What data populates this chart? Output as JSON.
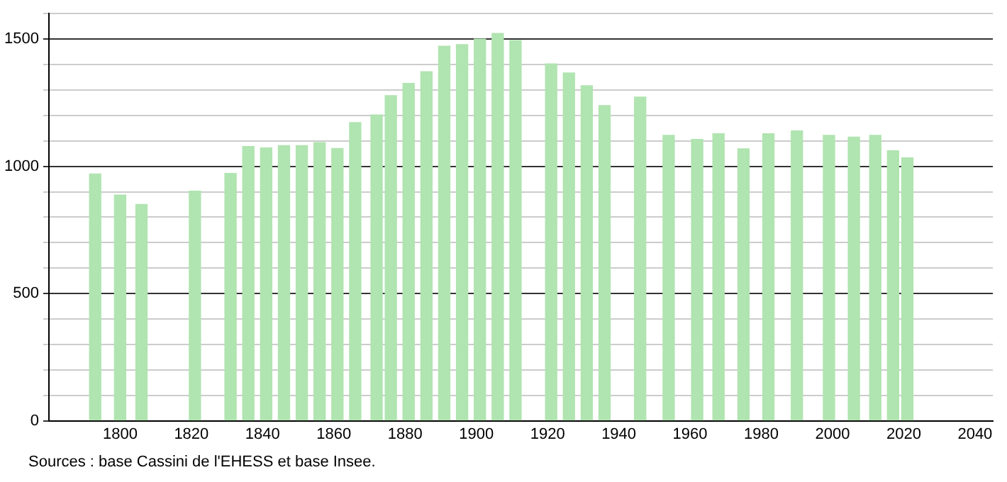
{
  "chart_data": {
    "type": "bar",
    "x": [
      1793,
      1800,
      1806,
      1821,
      1831,
      1836,
      1841,
      1846,
      1851,
      1856,
      1861,
      1866,
      1872,
      1876,
      1881,
      1886,
      1891,
      1896,
      1901,
      1906,
      1911,
      1921,
      1926,
      1931,
      1936,
      1946,
      1954,
      1962,
      1968,
      1975,
      1982,
      1990,
      1999,
      2006,
      2012,
      2017,
      2021
    ],
    "values": [
      970,
      887,
      850,
      902,
      972,
      1078,
      1072,
      1081,
      1081,
      1093,
      1070,
      1172,
      1202,
      1278,
      1326,
      1372,
      1472,
      1478,
      1500,
      1522,
      1494,
      1402,
      1367,
      1317,
      1239,
      1272,
      1122,
      1106,
      1128,
      1069,
      1128,
      1139,
      1122,
      1115,
      1122,
      1061,
      1033
    ],
    "color": "#b0e4b0",
    "xlim": [
      1780,
      2045
    ],
    "xticks": [
      1800,
      1820,
      1840,
      1860,
      1880,
      1900,
      1920,
      1940,
      1960,
      1980,
      2000,
      2020,
      2040
    ],
    "ylim": [
      0,
      1600
    ],
    "yticks": [
      0,
      {
        "value": 100,
        "label": null
      },
      {
        "value": 200,
        "label": null
      },
      {
        "value": 300,
        "label": null
      },
      {
        "value": 400,
        "label": null
      },
      500,
      {
        "value": 600,
        "label": null
      },
      {
        "value": 700,
        "label": null
      },
      {
        "value": 800,
        "label": null
      },
      {
        "value": 900,
        "label": null
      },
      1000,
      {
        "value": 1100,
        "label": null
      },
      {
        "value": 1200,
        "label": null
      },
      {
        "value": 1300,
        "label": null
      },
      {
        "value": 1400,
        "label": null
      },
      1500,
      {
        "value": 1600,
        "label": null
      }
    ],
    "grid": "y",
    "legend": false,
    "annotations": [
      "Sources : base Cassini de l'EHESS et base Insee."
    ]
  }
}
